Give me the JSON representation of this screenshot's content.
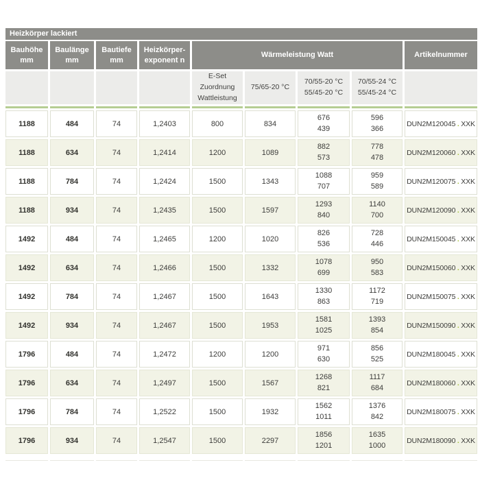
{
  "title_bar": "Heizkörper lackiert",
  "colors": {
    "header_gray": "#8d8d89",
    "subheader_gray": "#ececea",
    "accent_green": "#b5cd92",
    "row_alt_green": "#f2f3e6",
    "article_dot_green": "#a6c23c"
  },
  "table": {
    "headers": {
      "col1": [
        "Bauhöhe",
        "mm"
      ],
      "col2": [
        "Baulänge",
        "mm"
      ],
      "col3": [
        "Bautiefe",
        "mm"
      ],
      "col4": [
        "Heizkörper-",
        "exponent n"
      ],
      "group": "Wärmeleistung Watt",
      "artikel": "Artikelnummer"
    },
    "subheaders": {
      "eset": [
        "E-Set",
        "Zuordnung",
        "Wattleistung"
      ],
      "t1": "75/65-20 °C",
      "t2": [
        "70/55-20 °C",
        "55/45-20 °C"
      ],
      "t3": [
        "70/55-24 °C",
        "55/45-24 °C"
      ]
    },
    "article_separator": ".",
    "article_suffix": "XXK",
    "rows": [
      {
        "bauhoehe": "1188",
        "baulaenge": "484",
        "bautiefe": "74",
        "exponent": "1,2403",
        "eset": "800",
        "w7565": "834",
        "w20": [
          "676",
          "439"
        ],
        "w24": [
          "596",
          "366"
        ],
        "artikel": "DUN2M120045"
      },
      {
        "bauhoehe": "1188",
        "baulaenge": "634",
        "bautiefe": "74",
        "exponent": "1,2414",
        "eset": "1200",
        "w7565": "1089",
        "w20": [
          "882",
          "573"
        ],
        "w24": [
          "778",
          "478"
        ],
        "artikel": "DUN2M120060"
      },
      {
        "bauhoehe": "1188",
        "baulaenge": "784",
        "bautiefe": "74",
        "exponent": "1,2424",
        "eset": "1500",
        "w7565": "1343",
        "w20": [
          "1088",
          "707"
        ],
        "w24": [
          "959",
          "589"
        ],
        "artikel": "DUN2M120075"
      },
      {
        "bauhoehe": "1188",
        "baulaenge": "934",
        "bautiefe": "74",
        "exponent": "1,2435",
        "eset": "1500",
        "w7565": "1597",
        "w20": [
          "1293",
          "840"
        ],
        "w24": [
          "1140",
          "700"
        ],
        "artikel": "DUN2M120090"
      },
      {
        "bauhoehe": "1492",
        "baulaenge": "484",
        "bautiefe": "74",
        "exponent": "1,2465",
        "eset": "1200",
        "w7565": "1020",
        "w20": [
          "826",
          "536"
        ],
        "w24": [
          "728",
          "446"
        ],
        "artikel": "DUN2M150045"
      },
      {
        "bauhoehe": "1492",
        "baulaenge": "634",
        "bautiefe": "74",
        "exponent": "1,2466",
        "eset": "1500",
        "w7565": "1332",
        "w20": [
          "1078",
          "699"
        ],
        "w24": [
          "950",
          "583"
        ],
        "artikel": "DUN2M150060"
      },
      {
        "bauhoehe": "1492",
        "baulaenge": "784",
        "bautiefe": "74",
        "exponent": "1,2467",
        "eset": "1500",
        "w7565": "1643",
        "w20": [
          "1330",
          "863"
        ],
        "w24": [
          "1172",
          "719"
        ],
        "artikel": "DUN2M150075"
      },
      {
        "bauhoehe": "1492",
        "baulaenge": "934",
        "bautiefe": "74",
        "exponent": "1,2467",
        "eset": "1500",
        "w7565": "1953",
        "w20": [
          "1581",
          "1025"
        ],
        "w24": [
          "1393",
          "854"
        ],
        "artikel": "DUN2M150090"
      },
      {
        "bauhoehe": "1796",
        "baulaenge": "484",
        "bautiefe": "74",
        "exponent": "1,2472",
        "eset": "1200",
        "w7565": "1200",
        "w20": [
          "971",
          "630"
        ],
        "w24": [
          "856",
          "525"
        ],
        "artikel": "DUN2M180045"
      },
      {
        "bauhoehe": "1796",
        "baulaenge": "634",
        "bautiefe": "74",
        "exponent": "1,2497",
        "eset": "1500",
        "w7565": "1567",
        "w20": [
          "1268",
          "821"
        ],
        "w24": [
          "1117",
          "684"
        ],
        "artikel": "DUN2M180060"
      },
      {
        "bauhoehe": "1796",
        "baulaenge": "784",
        "bautiefe": "74",
        "exponent": "1,2522",
        "eset": "1500",
        "w7565": "1932",
        "w20": [
          "1562",
          "1011"
        ],
        "w24": [
          "1376",
          "842"
        ],
        "artikel": "DUN2M180075"
      },
      {
        "bauhoehe": "1796",
        "baulaenge": "934",
        "bautiefe": "74",
        "exponent": "1,2547",
        "eset": "1500",
        "w7565": "2297",
        "w20": [
          "1856",
          "1201"
        ],
        "w24": [
          "1635",
          "1000"
        ],
        "artikel": "DUN2M180090"
      }
    ]
  }
}
